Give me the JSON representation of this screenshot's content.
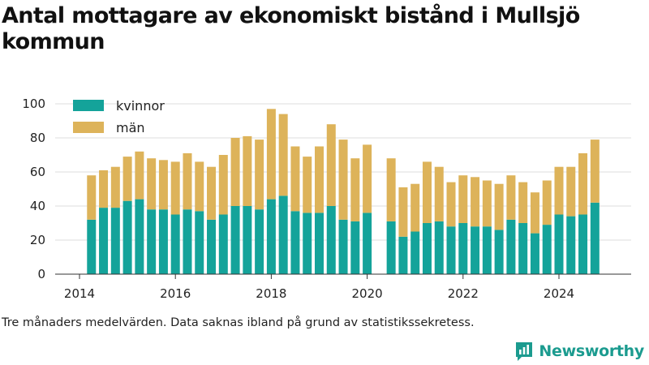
{
  "title": "Antal mottagare av ekonomiskt bistånd i Mullsjö kommun",
  "footnote": "Tre månaders medelvärden. Data saknas ibland på grund av statistikssekretess.",
  "brand": {
    "name": "Newsworthy",
    "icon": "newsworthy-logo-icon",
    "color": "#1b9b8f"
  },
  "chart_data": {
    "type": "bar",
    "stacked": true,
    "xlabel": "",
    "ylabel": "",
    "ylim": [
      0,
      100
    ],
    "yticks": [
      0,
      20,
      40,
      60,
      80,
      100
    ],
    "xticks": [
      "2014",
      "2016",
      "2018",
      "2020",
      "2022",
      "2024"
    ],
    "grid": true,
    "legend_position": "top-left",
    "colors": {
      "kvinnor": "#14a39a",
      "män": "#ddb35a"
    },
    "x": [
      "2014-Q2",
      "2014-Q3",
      "2014-Q4",
      "2015-Q1",
      "2015-Q2",
      "2015-Q3",
      "2015-Q4",
      "2016-Q1",
      "2016-Q2",
      "2016-Q3",
      "2016-Q4",
      "2017-Q1",
      "2017-Q2",
      "2017-Q3",
      "2017-Q4",
      "2018-Q1",
      "2018-Q2",
      "2018-Q3",
      "2018-Q4",
      "2019-Q1",
      "2019-Q2",
      "2019-Q3",
      "2019-Q4",
      "2020-Q1",
      "2020-Q2",
      "2020-Q3",
      "2020-Q4",
      "2021-Q1",
      "2021-Q2",
      "2021-Q3",
      "2021-Q4",
      "2022-Q1",
      "2022-Q2",
      "2022-Q3",
      "2022-Q4",
      "2023-Q1",
      "2023-Q2",
      "2023-Q3",
      "2023-Q4",
      "2024-Q1",
      "2024-Q2",
      "2024-Q3",
      "2024-Q4"
    ],
    "series": [
      {
        "name": "kvinnor",
        "values": [
          32,
          39,
          39,
          43,
          44,
          38,
          38,
          35,
          38,
          37,
          32,
          35,
          40,
          40,
          38,
          44,
          46,
          37,
          36,
          36,
          40,
          32,
          31,
          36,
          null,
          31,
          22,
          25,
          30,
          31,
          28,
          30,
          28,
          28,
          26,
          32,
          30,
          24,
          29,
          35,
          34,
          35,
          42
        ]
      },
      {
        "name": "män",
        "values": [
          26,
          22,
          24,
          26,
          28,
          30,
          29,
          31,
          33,
          29,
          31,
          35,
          40,
          41,
          41,
          53,
          48,
          38,
          33,
          39,
          48,
          47,
          37,
          40,
          null,
          37,
          29,
          28,
          36,
          32,
          26,
          28,
          29,
          27,
          27,
          26,
          24,
          24,
          26,
          28,
          29,
          36,
          37
        ]
      }
    ]
  }
}
